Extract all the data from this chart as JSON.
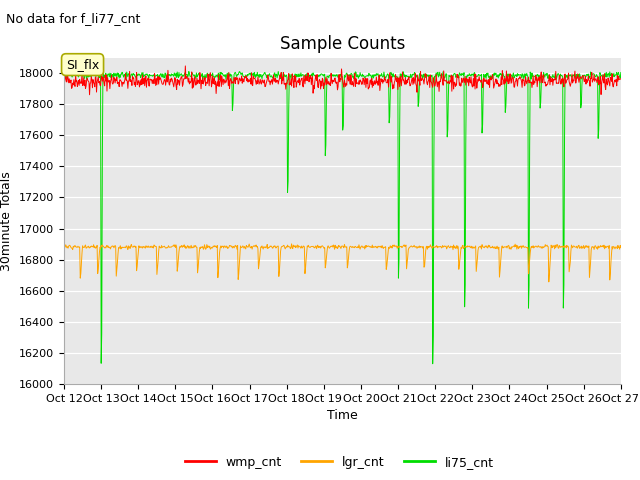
{
  "title": "Sample Counts",
  "xlabel": "Time",
  "ylabel": "30minute Totals",
  "annotation_text": "No data for f_li77_cnt",
  "annotation_fontsize": 9,
  "inset_label": "SI_flx",
  "ylim": [
    16000,
    18100
  ],
  "yticks": [
    16000,
    16200,
    16400,
    16600,
    16800,
    17000,
    17200,
    17400,
    17600,
    17800,
    18000
  ],
  "xtick_labels": [
    "Oct 12",
    "Oct 13",
    "Oct 14",
    "Oct 15",
    "Oct 16",
    "Oct 17",
    "Oct 18",
    "Oct 19",
    "Oct 20",
    "Oct 21",
    "Oct 22",
    "Oct 23",
    "Oct 24",
    "Oct 25",
    "Oct 26",
    "Oct 27"
  ],
  "num_points": 960,
  "wmp_base": 17950,
  "wmp_noise": 25,
  "lgr_base": 16882,
  "lgr_noise": 6,
  "li75_base": 17985,
  "li75_noise": 10,
  "fig_bg_color": "#ffffff",
  "plot_bg_color": "#e8e8e8",
  "wmp_color": "#ff0000",
  "lgr_color": "#ffa500",
  "li75_color": "#00dd00",
  "legend_labels": [
    "wmp_cnt",
    "lgr_cnt",
    "li75_cnt"
  ],
  "title_fontsize": 12,
  "axis_fontsize": 9,
  "tick_fontsize": 8
}
